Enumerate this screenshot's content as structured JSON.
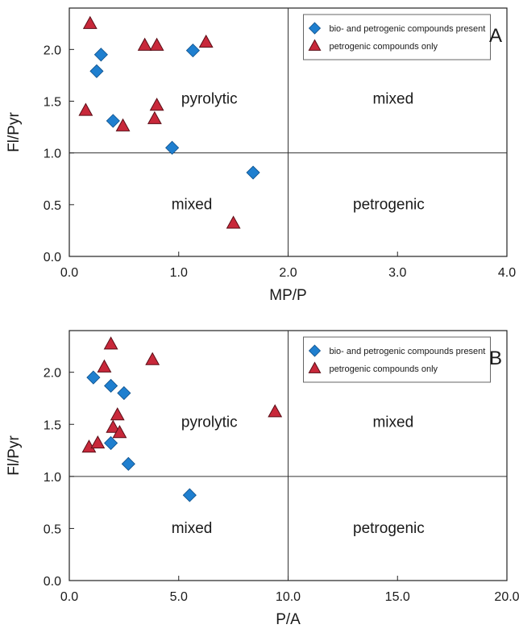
{
  "colors": {
    "bio_petro": "#1f7fcf",
    "petro_only": "#c8283a",
    "axis": "#222222",
    "refline": "#333333"
  },
  "chart_data": [
    {
      "type": "scatter",
      "panel": "A",
      "xlabel": "MP/P",
      "ylabel": "Fl/Pyr",
      "xlim": [
        0,
        4.0
      ],
      "ylim": [
        0,
        2.4
      ],
      "xticks": [
        0,
        1,
        2,
        3,
        4
      ],
      "xtick_labels": [
        "0.0",
        "1.0",
        "2.0",
        "3.0",
        "4.0"
      ],
      "yticks": [
        0,
        0.5,
        1,
        1.5,
        2
      ],
      "ytick_labels": [
        "0.0",
        "0.5",
        "1.0",
        "1.5",
        "2.0"
      ],
      "reference_lines": {
        "x": 2.0,
        "y": 1.0
      },
      "grid": false,
      "legend_position": "top-right",
      "regions": [
        {
          "text": "pyrolytic",
          "quadrant": "top-left"
        },
        {
          "text": "mixed",
          "quadrant": "top-right"
        },
        {
          "text": "mixed",
          "quadrant": "bottom-left"
        },
        {
          "text": "petrogenic",
          "quadrant": "bottom-right"
        }
      ],
      "series": [
        {
          "name": "bio- and petrogenic compounds present",
          "marker": "diamond",
          "color": "#1f7fcf",
          "points": [
            {
              "x": 0.29,
              "y": 1.95
            },
            {
              "x": 0.25,
              "y": 1.79
            },
            {
              "x": 0.4,
              "y": 1.31
            },
            {
              "x": 0.94,
              "y": 1.05
            },
            {
              "x": 1.13,
              "y": 1.99
            },
            {
              "x": 1.68,
              "y": 0.81
            }
          ]
        },
        {
          "name": "petrogenic compounds only",
          "marker": "triangle",
          "color": "#c8283a",
          "points": [
            {
              "x": 0.19,
              "y": 2.25
            },
            {
              "x": 0.15,
              "y": 1.41
            },
            {
              "x": 0.49,
              "y": 1.26
            },
            {
              "x": 0.69,
              "y": 2.04
            },
            {
              "x": 0.8,
              "y": 2.04
            },
            {
              "x": 0.8,
              "y": 1.46
            },
            {
              "x": 0.78,
              "y": 1.33
            },
            {
              "x": 1.25,
              "y": 2.07
            },
            {
              "x": 1.5,
              "y": 0.32
            }
          ]
        }
      ]
    },
    {
      "type": "scatter",
      "panel": "B",
      "xlabel": "P/A",
      "ylabel": "Fl/Pyr",
      "xlim": [
        0,
        20.0
      ],
      "ylim": [
        0,
        2.4
      ],
      "xticks": [
        0,
        5,
        10,
        15,
        20
      ],
      "xtick_labels": [
        "0.0",
        "5.0",
        "10.0",
        "15.0",
        "20.0"
      ],
      "yticks": [
        0,
        0.5,
        1,
        1.5,
        2
      ],
      "ytick_labels": [
        "0.0",
        "0.5",
        "1.0",
        "1.5",
        "2.0"
      ],
      "reference_lines": {
        "x": 10.0,
        "y": 1.0
      },
      "grid": false,
      "legend_position": "top-right",
      "regions": [
        {
          "text": "pyrolytic",
          "quadrant": "top-left"
        },
        {
          "text": "mixed",
          "quadrant": "top-right"
        },
        {
          "text": "mixed",
          "quadrant": "bottom-left"
        },
        {
          "text": "petrogenic",
          "quadrant": "bottom-right"
        }
      ],
      "series": [
        {
          "name": "bio- and petrogenic compounds present",
          "marker": "diamond",
          "color": "#1f7fcf",
          "points": [
            {
              "x": 1.1,
              "y": 1.95
            },
            {
              "x": 1.9,
              "y": 1.87
            },
            {
              "x": 2.5,
              "y": 1.8
            },
            {
              "x": 1.9,
              "y": 1.32
            },
            {
              "x": 2.7,
              "y": 1.12
            },
            {
              "x": 5.5,
              "y": 0.82
            }
          ]
        },
        {
          "name": "petrogenic compounds only",
          "marker": "triangle",
          "color": "#c8283a",
          "points": [
            {
              "x": 0.9,
              "y": 1.28
            },
            {
              "x": 1.3,
              "y": 1.32
            },
            {
              "x": 1.6,
              "y": 2.05
            },
            {
              "x": 1.9,
              "y": 2.27
            },
            {
              "x": 2.0,
              "y": 1.47
            },
            {
              "x": 2.2,
              "y": 1.59
            },
            {
              "x": 2.3,
              "y": 1.42
            },
            {
              "x": 3.8,
              "y": 2.12
            },
            {
              "x": 9.4,
              "y": 1.62
            }
          ]
        }
      ]
    }
  ]
}
